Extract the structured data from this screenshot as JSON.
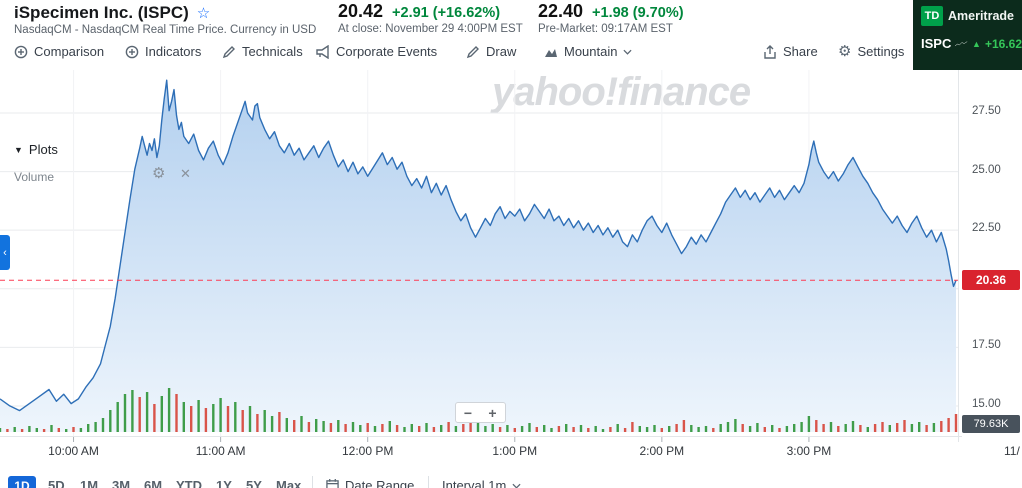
{
  "header": {
    "title": "iSpecimen Inc. (ISPC)",
    "subtitle": "NasdaqCM - NasdaqCM Real Time Price. Currency in USD",
    "close": {
      "price": "20.42",
      "change": "+2.91 (+16.62%)",
      "note": "At close: November 29 4:00PM EST"
    },
    "premarket": {
      "price": "22.40",
      "change": "+1.98 (9.70%)",
      "note": "Pre-Market: 09:17AM EST"
    },
    "ad": {
      "logo": "TD",
      "brand": "Ameritrade",
      "symbol": "ISPC",
      "change": "+16.62"
    }
  },
  "toolbar": {
    "comparison": "Comparison",
    "indicators": "Indicators",
    "technicals": "Technicals",
    "corporate_events": "Corporate Events",
    "draw": "Draw",
    "chart_type": "Mountain",
    "share": "Share",
    "settings": "Settings"
  },
  "chart_panel": {
    "watermark": "yahoo!finance",
    "plots": "Plots",
    "volume_label": "Volume",
    "price_tag": "20.36",
    "volume_badge": "79.63K",
    "corner_date": "11/",
    "zoom_out": "−",
    "zoom_in": "+"
  },
  "bottom_bar": {
    "selected_range": "1D",
    "ranges": [
      "5D",
      "1M",
      "3M",
      "6M",
      "YTD",
      "1Y",
      "5Y",
      "Max"
    ],
    "date_range": "Date Range",
    "interval": "Interval 1m"
  },
  "chart_data": {
    "type": "area",
    "title": "iSpecimen Inc. (ISPC) intraday price, 1D mountain chart",
    "x_unit": "minutes since 9:30 AM market open",
    "x_ticks": [
      {
        "m": 30,
        "label": "10:00 AM"
      },
      {
        "m": 90,
        "label": "11:00 AM"
      },
      {
        "m": 150,
        "label": "12:00 PM"
      },
      {
        "m": 210,
        "label": "1:00 PM"
      },
      {
        "m": 270,
        "label": "2:00 PM"
      },
      {
        "m": 330,
        "label": "3:00 PM"
      }
    ],
    "y_ticks": [
      27.5,
      25.0,
      22.5,
      17.5,
      15.0
    ],
    "ylim": [
      14.0,
      29.6
    ],
    "current_price": 20.36,
    "line_color": "#2e6fb7",
    "points": [
      [
        0,
        15.3
      ],
      [
        4,
        15.0
      ],
      [
        8,
        14.8
      ],
      [
        12,
        15.1
      ],
      [
        16,
        15.4
      ],
      [
        20,
        15.7
      ],
      [
        23,
        15.2
      ],
      [
        26,
        15.5
      ],
      [
        29,
        15.1
      ],
      [
        32,
        15.3
      ],
      [
        35,
        15.8
      ],
      [
        38,
        16.2
      ],
      [
        41,
        16.8
      ],
      [
        43,
        17.6
      ],
      [
        45,
        18.4
      ],
      [
        47,
        19.6
      ],
      [
        49,
        21.0
      ],
      [
        51,
        22.4
      ],
      [
        53,
        23.8
      ],
      [
        55,
        25.1
      ],
      [
        57,
        26.0
      ],
      [
        58,
        26.5
      ],
      [
        59,
        26.1
      ],
      [
        60,
        25.7
      ],
      [
        61,
        26.2
      ],
      [
        62,
        25.9
      ],
      [
        63,
        26.4
      ],
      [
        64,
        25.6
      ],
      [
        65,
        26.1
      ],
      [
        66,
        27.2
      ],
      [
        67,
        28.1
      ],
      [
        68,
        28.9
      ],
      [
        69,
        27.6
      ],
      [
        70,
        28.0
      ],
      [
        71,
        28.5
      ],
      [
        72,
        27.4
      ],
      [
        73,
        26.8
      ],
      [
        74,
        27.1
      ],
      [
        75,
        26.5
      ],
      [
        77,
        26.2
      ],
      [
        79,
        26.6
      ],
      [
        81,
        25.9
      ],
      [
        83,
        25.5
      ],
      [
        85,
        26.0
      ],
      [
        87,
        26.3
      ],
      [
        89,
        25.7
      ],
      [
        91,
        25.3
      ],
      [
        93,
        25.8
      ],
      [
        95,
        26.5
      ],
      [
        97,
        27.1
      ],
      [
        99,
        27.7
      ],
      [
        100,
        28.0
      ],
      [
        101,
        27.5
      ],
      [
        103,
        27.2
      ],
      [
        104,
        27.8
      ],
      [
        105,
        27.9
      ],
      [
        106,
        27.3
      ],
      [
        108,
        26.8
      ],
      [
        110,
        26.4
      ],
      [
        112,
        26.7
      ],
      [
        114,
        26.1
      ],
      [
        116,
        25.8
      ],
      [
        118,
        26.2
      ],
      [
        120,
        25.7
      ],
      [
        122,
        26.0
      ],
      [
        124,
        25.5
      ],
      [
        126,
        25.8
      ],
      [
        128,
        26.1
      ],
      [
        130,
        25.6
      ],
      [
        132,
        26.0
      ],
      [
        134,
        26.3
      ],
      [
        136,
        25.7
      ],
      [
        138,
        25.2
      ],
      [
        140,
        25.5
      ],
      [
        142,
        25.0
      ],
      [
        144,
        25.4
      ],
      [
        146,
        24.9
      ],
      [
        148,
        25.2
      ],
      [
        150,
        24.8
      ],
      [
        153,
        25.3
      ],
      [
        156,
        25.8
      ],
      [
        158,
        25.3
      ],
      [
        160,
        25.6
      ],
      [
        162,
        25.1
      ],
      [
        164,
        25.4
      ],
      [
        166,
        24.8
      ],
      [
        168,
        24.4
      ],
      [
        170,
        24.7
      ],
      [
        172,
        24.3
      ],
      [
        174,
        24.8
      ],
      [
        176,
        24.1
      ],
      [
        178,
        24.5
      ],
      [
        180,
        24.0
      ],
      [
        182,
        24.4
      ],
      [
        184,
        23.8
      ],
      [
        186,
        23.3
      ],
      [
        188,
        22.9
      ],
      [
        190,
        23.2
      ],
      [
        192,
        22.6
      ],
      [
        194,
        22.2
      ],
      [
        196,
        22.6
      ],
      [
        198,
        23.0
      ],
      [
        200,
        22.7
      ],
      [
        202,
        23.2
      ],
      [
        204,
        23.5
      ],
      [
        206,
        23.0
      ],
      [
        208,
        23.3
      ],
      [
        210,
        23.1
      ],
      [
        212,
        23.4
      ],
      [
        214,
        22.9
      ],
      [
        216,
        23.2
      ],
      [
        218,
        23.6
      ],
      [
        220,
        23.3
      ],
      [
        222,
        23.0
      ],
      [
        224,
        23.4
      ],
      [
        226,
        22.9
      ],
      [
        228,
        23.1
      ],
      [
        230,
        22.7
      ],
      [
        232,
        23.0
      ],
      [
        234,
        22.6
      ],
      [
        236,
        22.9
      ],
      [
        238,
        22.5
      ],
      [
        240,
        22.8
      ],
      [
        242,
        22.4
      ],
      [
        244,
        22.7
      ],
      [
        246,
        22.3
      ],
      [
        248,
        22.6
      ],
      [
        250,
        22.2
      ],
      [
        252,
        22.5
      ],
      [
        254,
        22.0
      ],
      [
        256,
        21.8
      ],
      [
        258,
        22.3
      ],
      [
        260,
        22.0
      ],
      [
        262,
        22.5
      ],
      [
        264,
        22.9
      ],
      [
        266,
        23.1
      ],
      [
        268,
        22.7
      ],
      [
        270,
        22.4
      ],
      [
        272,
        22.8
      ],
      [
        274,
        22.3
      ],
      [
        276,
        21.9
      ],
      [
        278,
        21.5
      ],
      [
        280,
        21.8
      ],
      [
        282,
        22.2
      ],
      [
        284,
        21.9
      ],
      [
        286,
        22.3
      ],
      [
        288,
        22.0
      ],
      [
        290,
        22.4
      ],
      [
        292,
        22.8
      ],
      [
        294,
        23.2
      ],
      [
        296,
        23.7
      ],
      [
        298,
        24.0
      ],
      [
        300,
        24.3
      ],
      [
        302,
        23.9
      ],
      [
        304,
        24.2
      ],
      [
        306,
        23.8
      ],
      [
        308,
        24.1
      ],
      [
        310,
        23.7
      ],
      [
        312,
        24.0
      ],
      [
        314,
        24.3
      ],
      [
        316,
        23.9
      ],
      [
        318,
        24.2
      ],
      [
        320,
        23.8
      ],
      [
        322,
        24.1
      ],
      [
        324,
        24.4
      ],
      [
        326,
        24.1
      ],
      [
        328,
        24.5
      ],
      [
        330,
        25.3
      ],
      [
        331,
        25.9
      ],
      [
        332,
        26.3
      ],
      [
        333,
        25.8
      ],
      [
        334,
        25.4
      ],
      [
        336,
        25.0
      ],
      [
        338,
        24.7
      ],
      [
        340,
        25.0
      ],
      [
        342,
        24.6
      ],
      [
        344,
        24.9
      ],
      [
        346,
        25.3
      ],
      [
        348,
        25.6
      ],
      [
        350,
        25.2
      ],
      [
        352,
        24.8
      ],
      [
        354,
        24.5
      ],
      [
        356,
        24.1
      ],
      [
        358,
        23.8
      ],
      [
        360,
        23.4
      ],
      [
        362,
        23.1
      ],
      [
        364,
        22.8
      ],
      [
        366,
        23.1
      ],
      [
        368,
        22.7
      ],
      [
        370,
        22.4
      ],
      [
        372,
        22.8
      ],
      [
        374,
        23.1
      ],
      [
        376,
        22.6
      ],
      [
        378,
        22.2
      ],
      [
        380,
        22.5
      ],
      [
        382,
        22.0
      ],
      [
        384,
        22.4
      ],
      [
        386,
        21.7
      ],
      [
        387,
        21.2
      ],
      [
        388,
        20.6
      ],
      [
        389,
        20.1
      ],
      [
        390,
        20.36
      ]
    ],
    "volume": {
      "latest_label": "79.63K",
      "bars": [
        [
          0,
          4,
          "g"
        ],
        [
          3,
          3,
          "r"
        ],
        [
          6,
          5,
          "g"
        ],
        [
          9,
          3,
          "r"
        ],
        [
          12,
          6,
          "g"
        ],
        [
          15,
          4,
          "g"
        ],
        [
          18,
          3,
          "r"
        ],
        [
          21,
          7,
          "g"
        ],
        [
          24,
          4,
          "r"
        ],
        [
          27,
          3,
          "g"
        ],
        [
          30,
          5,
          "r"
        ],
        [
          33,
          4,
          "g"
        ],
        [
          36,
          8,
          "g"
        ],
        [
          39,
          10,
          "g"
        ],
        [
          42,
          14,
          "g"
        ],
        [
          45,
          22,
          "g"
        ],
        [
          48,
          30,
          "g"
        ],
        [
          51,
          38,
          "g"
        ],
        [
          54,
          42,
          "g"
        ],
        [
          57,
          35,
          "r"
        ],
        [
          60,
          40,
          "g"
        ],
        [
          63,
          28,
          "r"
        ],
        [
          66,
          36,
          "g"
        ],
        [
          69,
          44,
          "g"
        ],
        [
          72,
          38,
          "r"
        ],
        [
          75,
          30,
          "g"
        ],
        [
          78,
          26,
          "r"
        ],
        [
          81,
          32,
          "g"
        ],
        [
          84,
          24,
          "r"
        ],
        [
          87,
          28,
          "g"
        ],
        [
          90,
          34,
          "g"
        ],
        [
          93,
          26,
          "r"
        ],
        [
          96,
          30,
          "g"
        ],
        [
          99,
          22,
          "r"
        ],
        [
          102,
          26,
          "g"
        ],
        [
          105,
          18,
          "r"
        ],
        [
          108,
          22,
          "g"
        ],
        [
          111,
          16,
          "g"
        ],
        [
          114,
          20,
          "r"
        ],
        [
          117,
          14,
          "g"
        ],
        [
          120,
          12,
          "r"
        ],
        [
          123,
          16,
          "g"
        ],
        [
          126,
          10,
          "r"
        ],
        [
          129,
          13,
          "g"
        ],
        [
          132,
          11,
          "g"
        ],
        [
          135,
          9,
          "r"
        ],
        [
          138,
          12,
          "g"
        ],
        [
          141,
          8,
          "r"
        ],
        [
          144,
          10,
          "g"
        ],
        [
          147,
          7,
          "g"
        ],
        [
          150,
          9,
          "r"
        ],
        [
          153,
          6,
          "g"
        ],
        [
          156,
          8,
          "r"
        ],
        [
          159,
          11,
          "g"
        ],
        [
          162,
          7,
          "r"
        ],
        [
          165,
          5,
          "g"
        ],
        [
          168,
          8,
          "g"
        ],
        [
          171,
          6,
          "r"
        ],
        [
          174,
          9,
          "g"
        ],
        [
          177,
          5,
          "r"
        ],
        [
          180,
          7,
          "g"
        ],
        [
          183,
          10,
          "r"
        ],
        [
          186,
          6,
          "g"
        ],
        [
          189,
          8,
          "r"
        ],
        [
          192,
          12,
          "r"
        ],
        [
          195,
          9,
          "g"
        ],
        [
          198,
          6,
          "g"
        ],
        [
          201,
          8,
          "g"
        ],
        [
          204,
          5,
          "r"
        ],
        [
          207,
          7,
          "g"
        ],
        [
          210,
          4,
          "r"
        ],
        [
          213,
          6,
          "g"
        ],
        [
          216,
          9,
          "g"
        ],
        [
          219,
          5,
          "r"
        ],
        [
          222,
          7,
          "g"
        ],
        [
          225,
          4,
          "g"
        ],
        [
          228,
          6,
          "r"
        ],
        [
          231,
          8,
          "g"
        ],
        [
          234,
          5,
          "r"
        ],
        [
          237,
          7,
          "g"
        ],
        [
          240,
          4,
          "r"
        ],
        [
          243,
          6,
          "g"
        ],
        [
          246,
          3,
          "g"
        ],
        [
          249,
          5,
          "r"
        ],
        [
          252,
          8,
          "g"
        ],
        [
          255,
          4,
          "r"
        ],
        [
          258,
          10,
          "r"
        ],
        [
          261,
          6,
          "g"
        ],
        [
          264,
          5,
          "g"
        ],
        [
          267,
          7,
          "g"
        ],
        [
          270,
          4,
          "r"
        ],
        [
          273,
          6,
          "g"
        ],
        [
          276,
          8,
          "r"
        ],
        [
          279,
          12,
          "r"
        ],
        [
          282,
          7,
          "g"
        ],
        [
          285,
          5,
          "g"
        ],
        [
          288,
          6,
          "g"
        ],
        [
          291,
          4,
          "r"
        ],
        [
          294,
          8,
          "g"
        ],
        [
          297,
          10,
          "g"
        ],
        [
          300,
          13,
          "g"
        ],
        [
          303,
          8,
          "r"
        ],
        [
          306,
          6,
          "g"
        ],
        [
          309,
          9,
          "g"
        ],
        [
          312,
          5,
          "r"
        ],
        [
          315,
          7,
          "g"
        ],
        [
          318,
          4,
          "r"
        ],
        [
          321,
          6,
          "g"
        ],
        [
          324,
          8,
          "g"
        ],
        [
          327,
          10,
          "g"
        ],
        [
          330,
          16,
          "g"
        ],
        [
          333,
          12,
          "r"
        ],
        [
          336,
          8,
          "r"
        ],
        [
          339,
          10,
          "g"
        ],
        [
          342,
          6,
          "r"
        ],
        [
          345,
          8,
          "g"
        ],
        [
          348,
          11,
          "g"
        ],
        [
          351,
          7,
          "r"
        ],
        [
          354,
          5,
          "g"
        ],
        [
          357,
          8,
          "r"
        ],
        [
          360,
          10,
          "r"
        ],
        [
          363,
          7,
          "g"
        ],
        [
          366,
          9,
          "r"
        ],
        [
          369,
          12,
          "r"
        ],
        [
          372,
          8,
          "g"
        ],
        [
          375,
          10,
          "g"
        ],
        [
          378,
          7,
          "r"
        ],
        [
          381,
          9,
          "g"
        ],
        [
          384,
          11,
          "r"
        ],
        [
          387,
          14,
          "r"
        ],
        [
          390,
          18,
          "r"
        ]
      ]
    }
  }
}
